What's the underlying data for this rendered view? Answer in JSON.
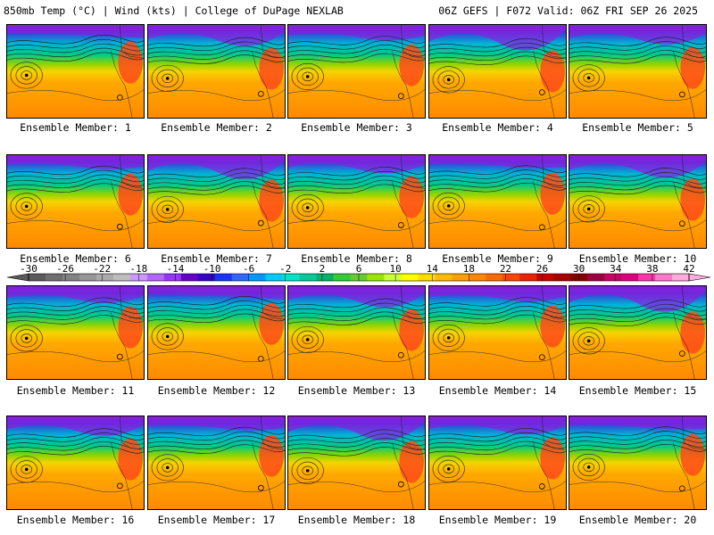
{
  "header": {
    "left_title": "850mb Temp (°C) | Wind (kts) | College of DuPage NEXLAB",
    "right_title": "06Z GEFS | F072 Valid: 06Z FRI SEP 26 2025"
  },
  "panels": [
    {
      "label": "Ensemble Member: 1"
    },
    {
      "label": "Ensemble Member: 2"
    },
    {
      "label": "Ensemble Member: 3"
    },
    {
      "label": "Ensemble Member: 4"
    },
    {
      "label": "Ensemble Member: 5"
    },
    {
      "label": "Ensemble Member: 6"
    },
    {
      "label": "Ensemble Member: 7"
    },
    {
      "label": "Ensemble Member: 8"
    },
    {
      "label": "Ensemble Member: 9"
    },
    {
      "label": "Ensemble Member: 10"
    },
    {
      "label": "Ensemble Member: 11"
    },
    {
      "label": "Ensemble Member: 12"
    },
    {
      "label": "Ensemble Member: 13"
    },
    {
      "label": "Ensemble Member: 14"
    },
    {
      "label": "Ensemble Member: 15"
    },
    {
      "label": "Ensemble Member: 16"
    },
    {
      "label": "Ensemble Member: 17"
    },
    {
      "label": "Ensemble Member: 18"
    },
    {
      "label": "Ensemble Member: 19"
    },
    {
      "label": "Ensemble Member: 20"
    }
  ],
  "colorbar": {
    "tick_labels": [
      "-30",
      "-26",
      "-22",
      "-18",
      "-14",
      "-10",
      "-6",
      "-2",
      "2",
      "6",
      "10",
      "14",
      "18",
      "22",
      "26",
      "30",
      "34",
      "38",
      "42"
    ],
    "colors": [
      "#5a5a5a",
      "#6e6e6e",
      "#828282",
      "#969696",
      "#aaaaaa",
      "#bdbdbd",
      "#cc99ff",
      "#b266ff",
      "#9933ff",
      "#6600cc",
      "#3300cc",
      "#1a33ff",
      "#3366ff",
      "#0099ff",
      "#00ccff",
      "#00e5cc",
      "#00cc99",
      "#00b36b",
      "#33cc33",
      "#66cc33",
      "#99e600",
      "#ccff33",
      "#ffff00",
      "#ffdd00",
      "#ffbb00",
      "#ffa000",
      "#ff8800",
      "#ff6a00",
      "#ff4400",
      "#ee2200",
      "#cc0000",
      "#aa0000",
      "#880000",
      "#a00040",
      "#cc0066",
      "#e0007f",
      "#ff33aa",
      "#ff77cc",
      "#ffaadd"
    ]
  }
}
